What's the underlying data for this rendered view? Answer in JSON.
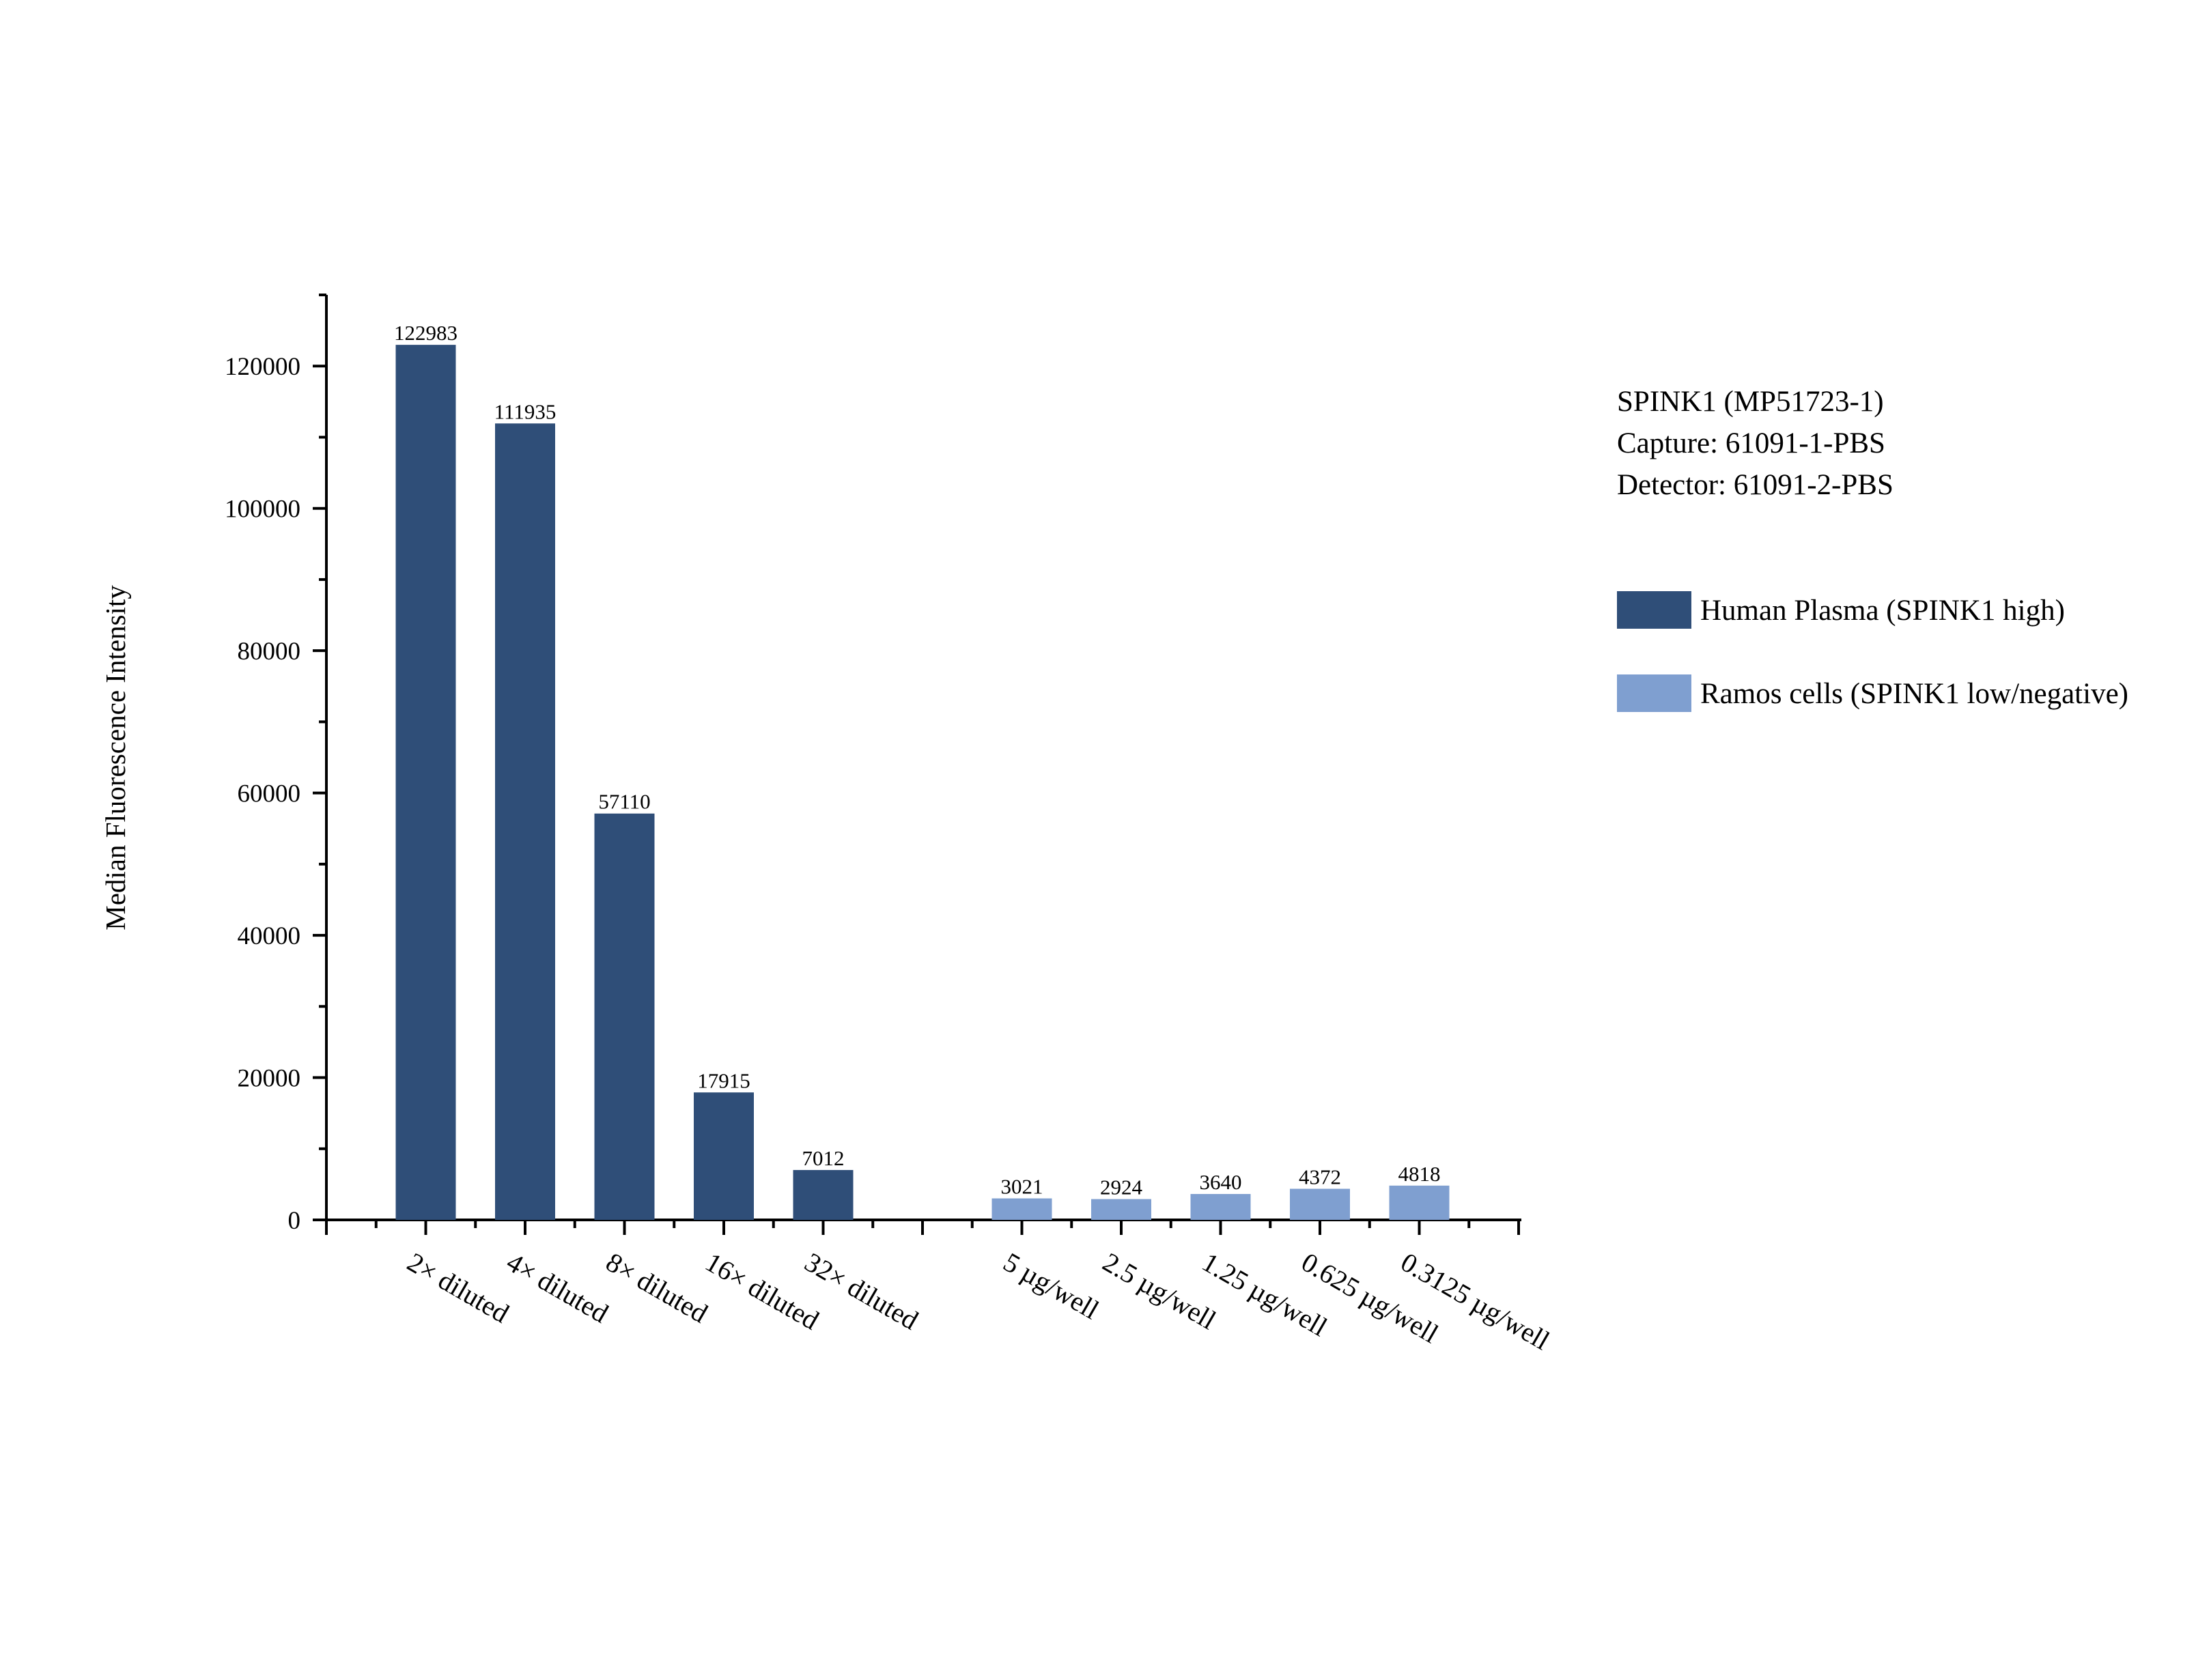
{
  "chart_data": {
    "type": "bar",
    "ylabel": "Median Fluorescence Intensity",
    "ylim": [
      0,
      130000
    ],
    "yticks": [
      0,
      20000,
      40000,
      60000,
      80000,
      100000,
      120000
    ],
    "grid": false,
    "legend_position": "right",
    "info_lines": [
      "SPINK1 (MP51723-1)",
      "Capture: 61091-1-PBS",
      "Detector: 61091-2-PBS"
    ],
    "categories": [
      "2× diluted",
      "4× diluted",
      "8× diluted",
      "16× diluted",
      "32× diluted",
      "5 µg/well",
      "2.5 µg/well",
      "1.25 µg/well",
      "0.625 µg/well",
      "0.3125 µg/well"
    ],
    "series": [
      {
        "name": "Human Plasma (SPINK1 high)",
        "color": "#2f4e78",
        "values": [
          122983,
          111935,
          57110,
          17915,
          7012,
          null,
          null,
          null,
          null,
          null
        ]
      },
      {
        "name": "Ramos cells (SPINK1 low/negative)",
        "color": "#7f9fd0",
        "values": [
          null,
          null,
          null,
          null,
          null,
          3021,
          2924,
          3640,
          4372,
          4818
        ]
      }
    ]
  }
}
